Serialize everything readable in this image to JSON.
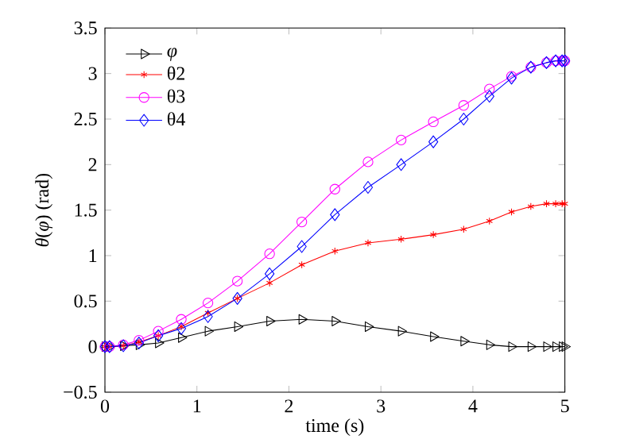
{
  "chart_data": {
    "type": "line",
    "xlabel": "time (s)",
    "ylabel": "*θ*(*φ*) (rad)",
    "x": [
      0,
      0.05,
      0.2,
      0.37,
      0.58,
      0.83,
      1.12,
      1.44,
      1.79,
      2.14,
      2.5,
      2.86,
      3.22,
      3.57,
      3.9,
      4.18,
      4.42,
      4.63,
      4.8,
      4.9,
      4.97,
      5
    ],
    "series": [
      {
        "name": "*φ*",
        "color": "#000000",
        "marker": "triangle",
        "values": [
          0,
          0,
          0.01,
          0.02,
          0.04,
          0.1,
          0.17,
          0.22,
          0.28,
          0.3,
          0.28,
          0.22,
          0.17,
          0.11,
          0.06,
          0.02,
          0,
          0,
          0,
          0,
          0,
          0
        ]
      },
      {
        "name": "θ2",
        "color": "#ff0000",
        "marker": "cross",
        "values": [
          0,
          0,
          0.01,
          0.05,
          0.12,
          0.22,
          0.37,
          0.53,
          0.7,
          0.9,
          1.05,
          1.14,
          1.18,
          1.23,
          1.29,
          1.38,
          1.48,
          1.54,
          1.57,
          1.57,
          1.57,
          1.57
        ]
      },
      {
        "name": "θ3",
        "color": "#ff00ff",
        "marker": "circle",
        "values": [
          0,
          0,
          0.02,
          0.07,
          0.17,
          0.3,
          0.48,
          0.72,
          1.02,
          1.37,
          1.73,
          2.03,
          2.27,
          2.47,
          2.65,
          2.83,
          2.97,
          3.07,
          3.12,
          3.14,
          3.14,
          3.14
        ]
      },
      {
        "name": "θ4",
        "color": "#0000ff",
        "marker": "diamond",
        "values": [
          0,
          0,
          0.01,
          0.04,
          0.12,
          0.2,
          0.33,
          0.53,
          0.8,
          1.1,
          1.45,
          1.75,
          2.0,
          2.25,
          2.5,
          2.75,
          2.95,
          3.07,
          3.12,
          3.14,
          3.14,
          3.14
        ]
      }
    ],
    "xlim": [
      0,
      5
    ],
    "ylim": [
      -0.5,
      3.5
    ],
    "xticks": [
      0,
      1,
      2,
      3,
      4,
      5
    ],
    "yticks": [
      {
        "value": -0.5,
        "label": "−0.5"
      },
      0,
      0.5,
      1,
      1.5,
      2,
      2.5,
      3,
      3.5
    ],
    "grid": false,
    "legend": "top left",
    "line_style": "solid"
  }
}
